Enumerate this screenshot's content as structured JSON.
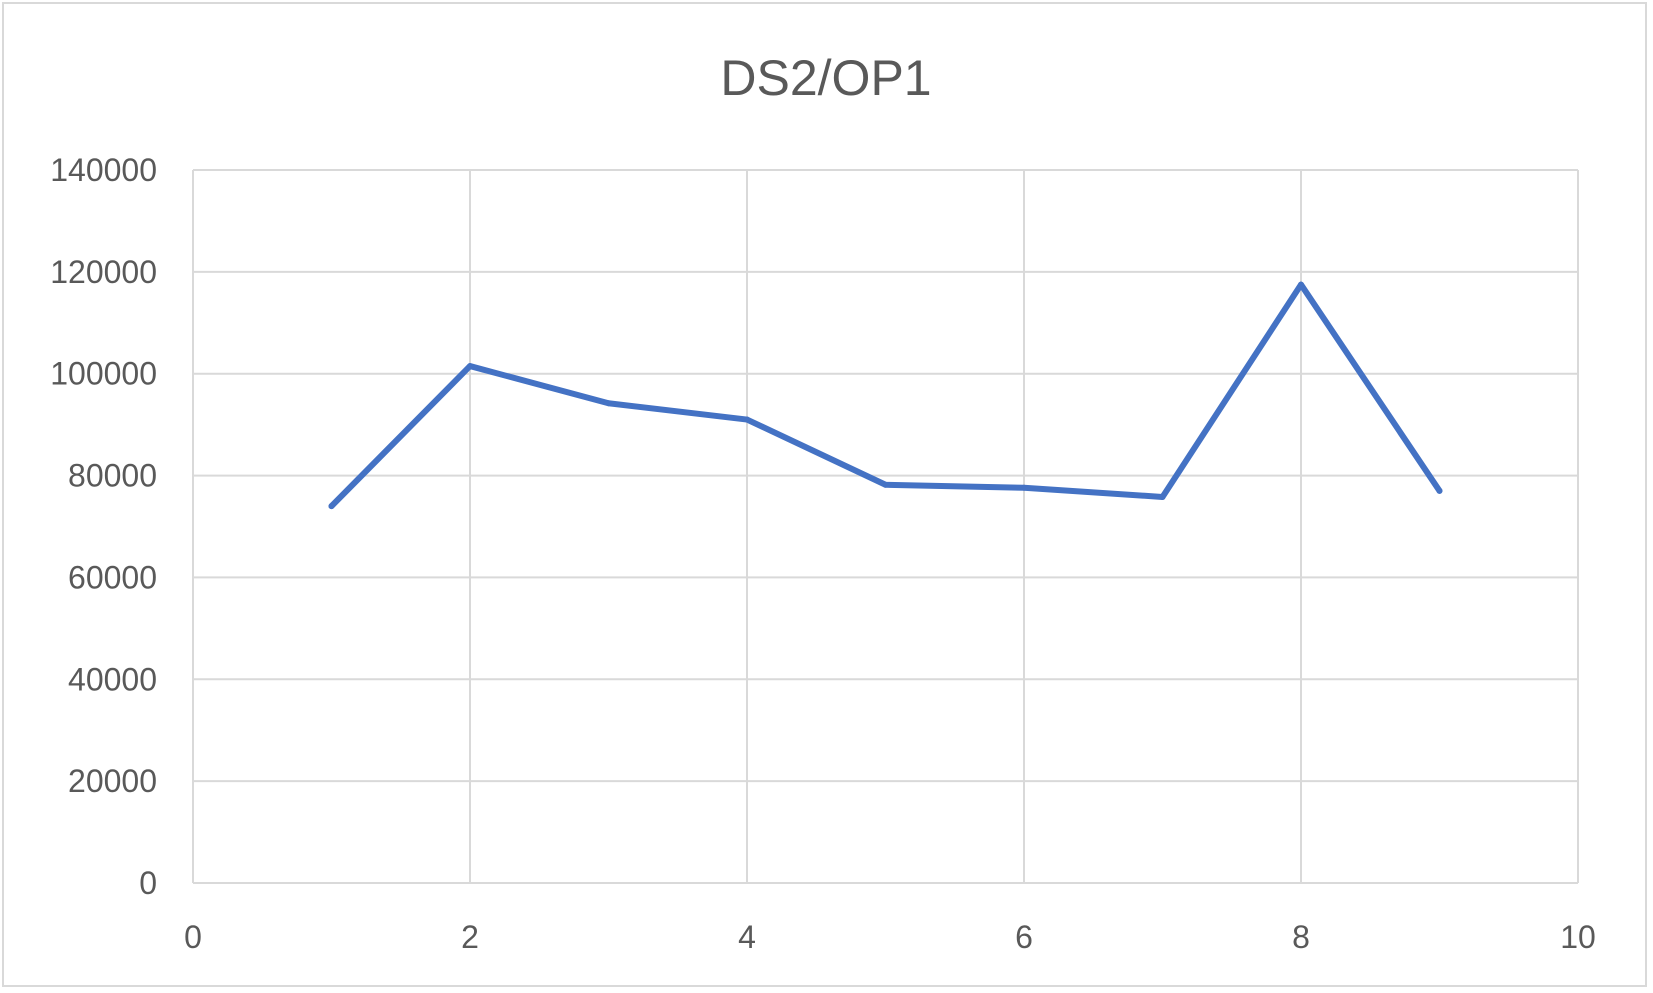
{
  "chart_data": {
    "type": "scatter",
    "mode": "lines",
    "title": "DS2/OP1",
    "xlabel": "",
    "ylabel": "",
    "xlim": [
      0,
      10
    ],
    "ylim": [
      0,
      140000
    ],
    "xticks": [
      0,
      2,
      4,
      6,
      8,
      10
    ],
    "yticks": [
      0,
      20000,
      40000,
      60000,
      80000,
      100000,
      120000,
      140000
    ],
    "xtick_labels": [
      "0",
      "2",
      "4",
      "6",
      "8",
      "10"
    ],
    "ytick_labels": [
      "0",
      "20000",
      "40000",
      "60000",
      "80000",
      "100000",
      "120000",
      "140000"
    ],
    "grid": true,
    "legend": "none",
    "series": [
      {
        "color": "#4472c4",
        "x": [
          1,
          2,
          3,
          4,
          5,
          6,
          7,
          8,
          9
        ],
        "y": [
          74000,
          101500,
          94200,
          91000,
          78200,
          77600,
          75800,
          117500,
          77000
        ]
      }
    ]
  }
}
